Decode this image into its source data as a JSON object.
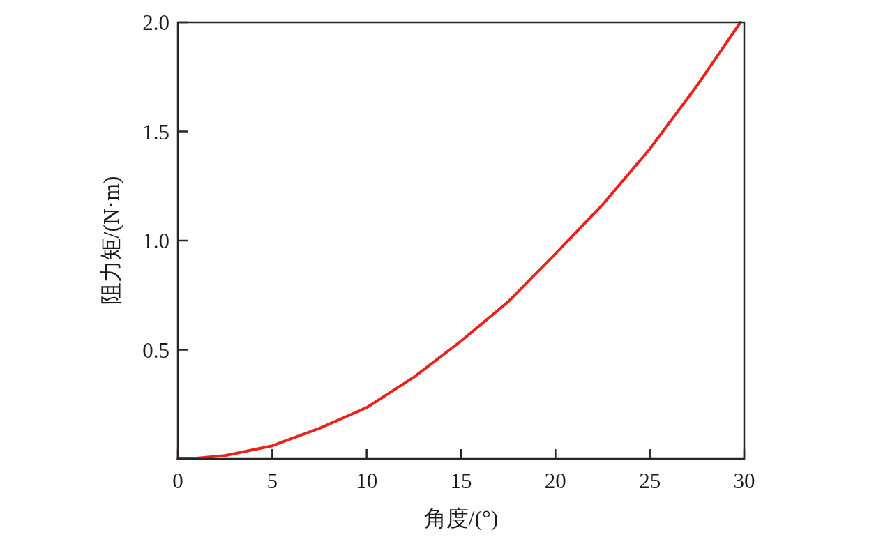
{
  "chart_data": {
    "type": "line",
    "xlabel": "角度/(°)",
    "ylabel": "阻力矩/(N·m)",
    "series": [
      {
        "color": "#e8231c",
        "x": [
          0,
          1,
          2.5,
          5,
          7.5,
          10,
          12.5,
          15,
          17.5,
          20,
          22.5,
          25,
          27.5,
          29.8
        ],
        "values": [
          0,
          0.003,
          0.015,
          0.06,
          0.14,
          0.235,
          0.374,
          0.54,
          0.72,
          0.94,
          1.165,
          1.42,
          1.71,
          2.0
        ]
      }
    ],
    "xlim": [
      0,
      30
    ],
    "ylim": [
      0,
      2.0
    ],
    "xticks": [
      0,
      5,
      10,
      15,
      20,
      25,
      30
    ],
    "yticks": [
      {
        "value": 0.5,
        "label": "0.5"
      },
      {
        "value": 1.0,
        "label": "1.0"
      },
      {
        "value": 1.5,
        "label": "1.5"
      },
      {
        "value": 2.0,
        "label": "2.0"
      }
    ],
    "grid": false,
    "marker": "none",
    "line_style": "solid"
  }
}
